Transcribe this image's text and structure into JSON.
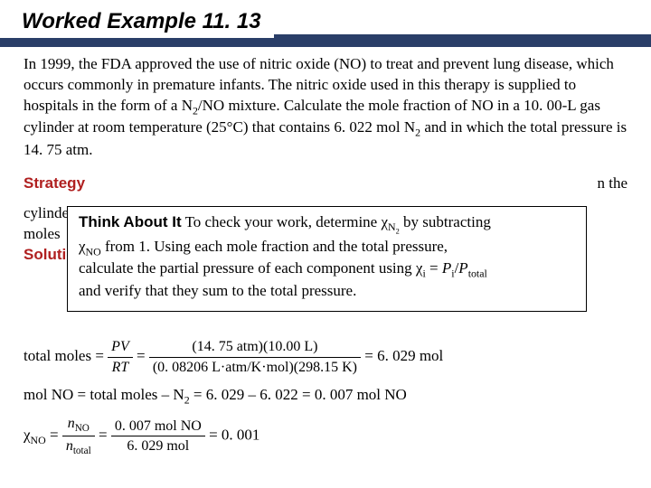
{
  "title": "Worked Example 11. 13",
  "colors": {
    "title_bar": "#2a3e68",
    "heading_red": "#b02020",
    "text": "#000000",
    "background": "#ffffff"
  },
  "fonts": {
    "title_family": "Arial",
    "title_size_pt": 18,
    "title_weight": "bold",
    "title_style": "italic",
    "body_family": "Times New Roman",
    "body_size_pt": 13
  },
  "problem": {
    "text_parts": [
      "In 1999, the FDA approved the use of nitric oxide (NO) to treat and prevent lung disease, which occurs commonly in premature infants. The nitric oxide used in this therapy is supplied to hospitals in the form of a N",
      "/NO mixture. Calculate the mole fraction of NO in a 10. 00-L gas cylinder at room temperature (25°C) that contains 6. 022 mol N",
      " and in which the total pressure is 14. 75 atm."
    ],
    "sub1": "2",
    "sub2": "2"
  },
  "strategy": {
    "label": "Strategy",
    "hidden_line1_prefix": "cylinder",
    "hidden_line2_prefix": "moles",
    "tail": "n the"
  },
  "solution_label": "Solution",
  "think": {
    "label": "Think About It",
    "line1a": "  To check your work, determine ",
    "chi": "χ",
    "n2_sub": "N",
    "n2_sub2": "2",
    "line1b": " by subtracting",
    "line2a": "χ",
    "no_sub": "NO",
    "line2b": " from 1. Using each mole fraction and the total pressure,",
    "line3a": "calculate the partial pressure of each component using ",
    "chi_i": "χ",
    "i_sub": "i",
    "eq_frag": " = ",
    "Pi": "P",
    "Pi_sub": "i",
    "slash": "/",
    "Ptot": "P",
    "Ptot_sub": "total",
    "line4": "and verify that they sum to the total pressure."
  },
  "calc": {
    "total_moles_label": "total moles = ",
    "pv": "PV",
    "rt": "RT",
    "eq": " = ",
    "num": "(14. 75 atm)(10.00 L)",
    "den": "(0. 08206 L·atm/K·mol)(298.15 K)",
    "result": " = 6. 029 mol",
    "mol_no_line": "mol NO = total moles – N",
    "mol_no_sub": "2",
    "mol_no_tail": " = 6. 029 – 6. 022 = 0. 007 mol NO",
    "chi_label": "χ",
    "chi_sub": "NO",
    "chi_eq": " = ",
    "n_no": "n",
    "n_no_sub": "NO",
    "n_tot": "n",
    "n_tot_sub": "total",
    "frac2_num": "0. 007 mol NO",
    "frac2_den": "6. 029 mol",
    "chi_result": " = 0. 001"
  }
}
